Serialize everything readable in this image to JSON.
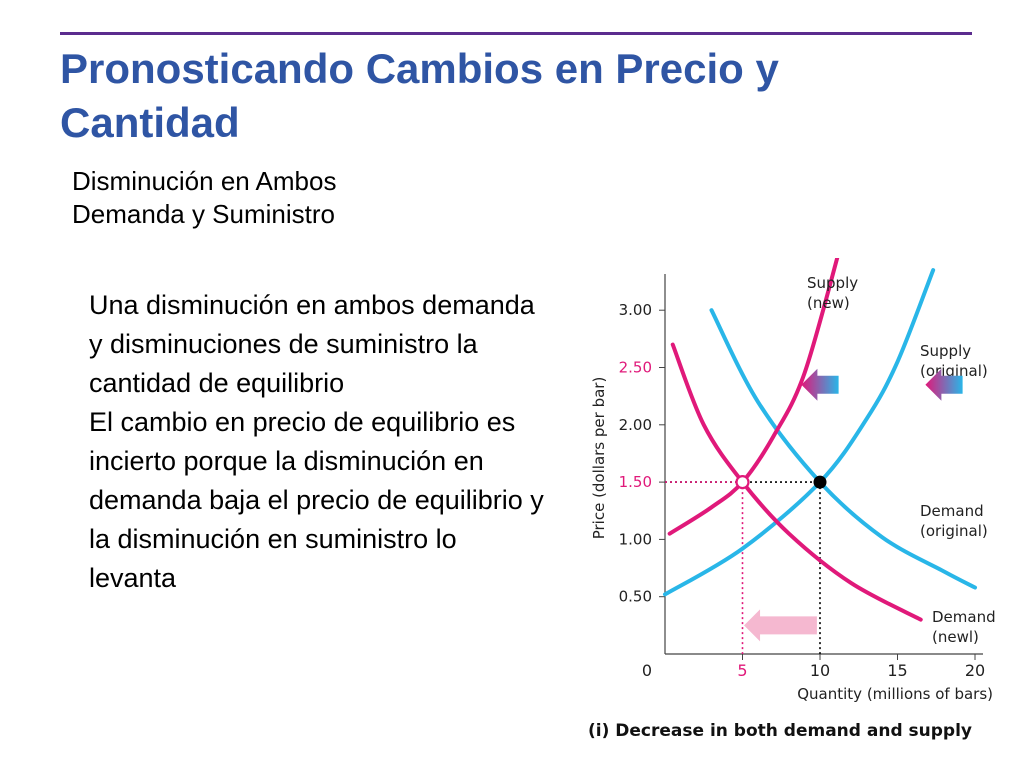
{
  "title": "Pronosticando Cambios en Precio y Cantidad",
  "subtitle": {
    "line1": "Disminución en Ambos",
    "line2": "Demanda y Suministro"
  },
  "body": {
    "para1": "Una disminución en ambos demanda y disminuciones de suministro la cantidad de equilibrio",
    "para2": "El cambio en precio de equilibrio es incierto porque la disminución en demanda baja el precio de equilibrio y la disminución en suministro lo levanta"
  },
  "colors": {
    "title": "#2f55a4",
    "rule": "#5b2c8e",
    "original": "#29b6e8",
    "new": "#e0197a",
    "point": "#000000",
    "pink_tick": "#e0197a"
  },
  "chart_data": {
    "type": "line",
    "title": "",
    "caption": "(i) Decrease in both demand and supply",
    "xlabel": "Quantity (millions of bars)",
    "ylabel": "Price (dollars per bar)",
    "xlim": [
      0,
      20
    ],
    "ylim": [
      0,
      3.2
    ],
    "x_ticks": [
      {
        "value": 0,
        "label": "0",
        "highlight": false
      },
      {
        "value": 5,
        "label": "5",
        "highlight": true
      },
      {
        "value": 10,
        "label": "10",
        "highlight": false
      },
      {
        "value": 15,
        "label": "15",
        "highlight": false
      },
      {
        "value": 20,
        "label": "20",
        "highlight": false
      }
    ],
    "y_ticks": [
      {
        "value": 0.5,
        "label": "0.50",
        "highlight": false
      },
      {
        "value": 1.0,
        "label": "1.00",
        "highlight": false
      },
      {
        "value": 1.5,
        "label": "1.50",
        "highlight": true
      },
      {
        "value": 2.0,
        "label": "2.00",
        "highlight": false
      },
      {
        "value": 2.5,
        "label": "2.50",
        "highlight": true
      },
      {
        "value": 3.0,
        "label": "3.00",
        "highlight": false
      }
    ],
    "grid": false,
    "legend": "none",
    "series": [
      {
        "name": "Supply (original)",
        "color": "#29b6e8",
        "label_lines": [
          "Supply",
          "(original)"
        ],
        "points": [
          [
            0,
            0.52
          ],
          [
            5,
            0.92
          ],
          [
            10,
            1.5
          ],
          [
            13,
            2.05
          ],
          [
            15,
            2.55
          ],
          [
            17.3,
            3.35
          ]
        ]
      },
      {
        "name": "Demand (original)",
        "color": "#29b6e8",
        "label_lines": [
          "Demand",
          "(original)"
        ],
        "points": [
          [
            3,
            3.0
          ],
          [
            6,
            2.2
          ],
          [
            10,
            1.5
          ],
          [
            14,
            1.02
          ],
          [
            18,
            0.72
          ],
          [
            20,
            0.58
          ]
        ]
      },
      {
        "name": "Supply (new)",
        "color": "#e0197a",
        "label_lines": [
          "Supply",
          "(new)"
        ],
        "points": [
          [
            0.3,
            1.05
          ],
          [
            3,
            1.28
          ],
          [
            5,
            1.5
          ],
          [
            7,
            1.9
          ],
          [
            9,
            2.45
          ],
          [
            11.3,
            3.55
          ]
        ]
      },
      {
        "name": "Demand (newl)",
        "color": "#e0197a",
        "label_lines": [
          "Demand",
          "(newl)"
        ],
        "points": [
          [
            0.5,
            2.7
          ],
          [
            2.5,
            2.0
          ],
          [
            5,
            1.5
          ],
          [
            8,
            1.05
          ],
          [
            12,
            0.62
          ],
          [
            16.5,
            0.3
          ]
        ]
      }
    ],
    "equilibria": [
      {
        "x": 5,
        "y": 1.5,
        "style": "hollow",
        "color": "#e0197a"
      },
      {
        "x": 10,
        "y": 1.5,
        "style": "filled",
        "color": "#000000"
      }
    ],
    "guides": [
      {
        "from": [
          0,
          1.5
        ],
        "to": [
          10,
          1.5
        ],
        "color": "#000000"
      },
      {
        "from": [
          0,
          1.5
        ],
        "to": [
          5,
          1.5
        ],
        "color": "#e0197a"
      },
      {
        "from": [
          5,
          1.5
        ],
        "to": [
          5,
          0
        ],
        "color": "#e0197a"
      },
      {
        "from": [
          10,
          1.5
        ],
        "to": [
          10,
          0
        ],
        "color": "#000000"
      }
    ],
    "shift_arrows": [
      {
        "name": "supply-shift-arrow",
        "direction": "left",
        "y": 2.35,
        "x_from": 11.2,
        "x_to": 8.8,
        "colors": [
          "#e0197a",
          "#29b6e8"
        ]
      },
      {
        "name": "demand-shift-arrow",
        "direction": "left",
        "y": 2.35,
        "x_from": 19.2,
        "x_to": 16.8,
        "colors": [
          "#e0197a",
          "#29b6e8"
        ]
      },
      {
        "name": "quantity-shift-arrow",
        "direction": "left",
        "y": 0.25,
        "x_from": 9.8,
        "x_to": 5.1,
        "colors": [
          "#f5b8d0",
          "#f5b8d0"
        ]
      }
    ]
  }
}
